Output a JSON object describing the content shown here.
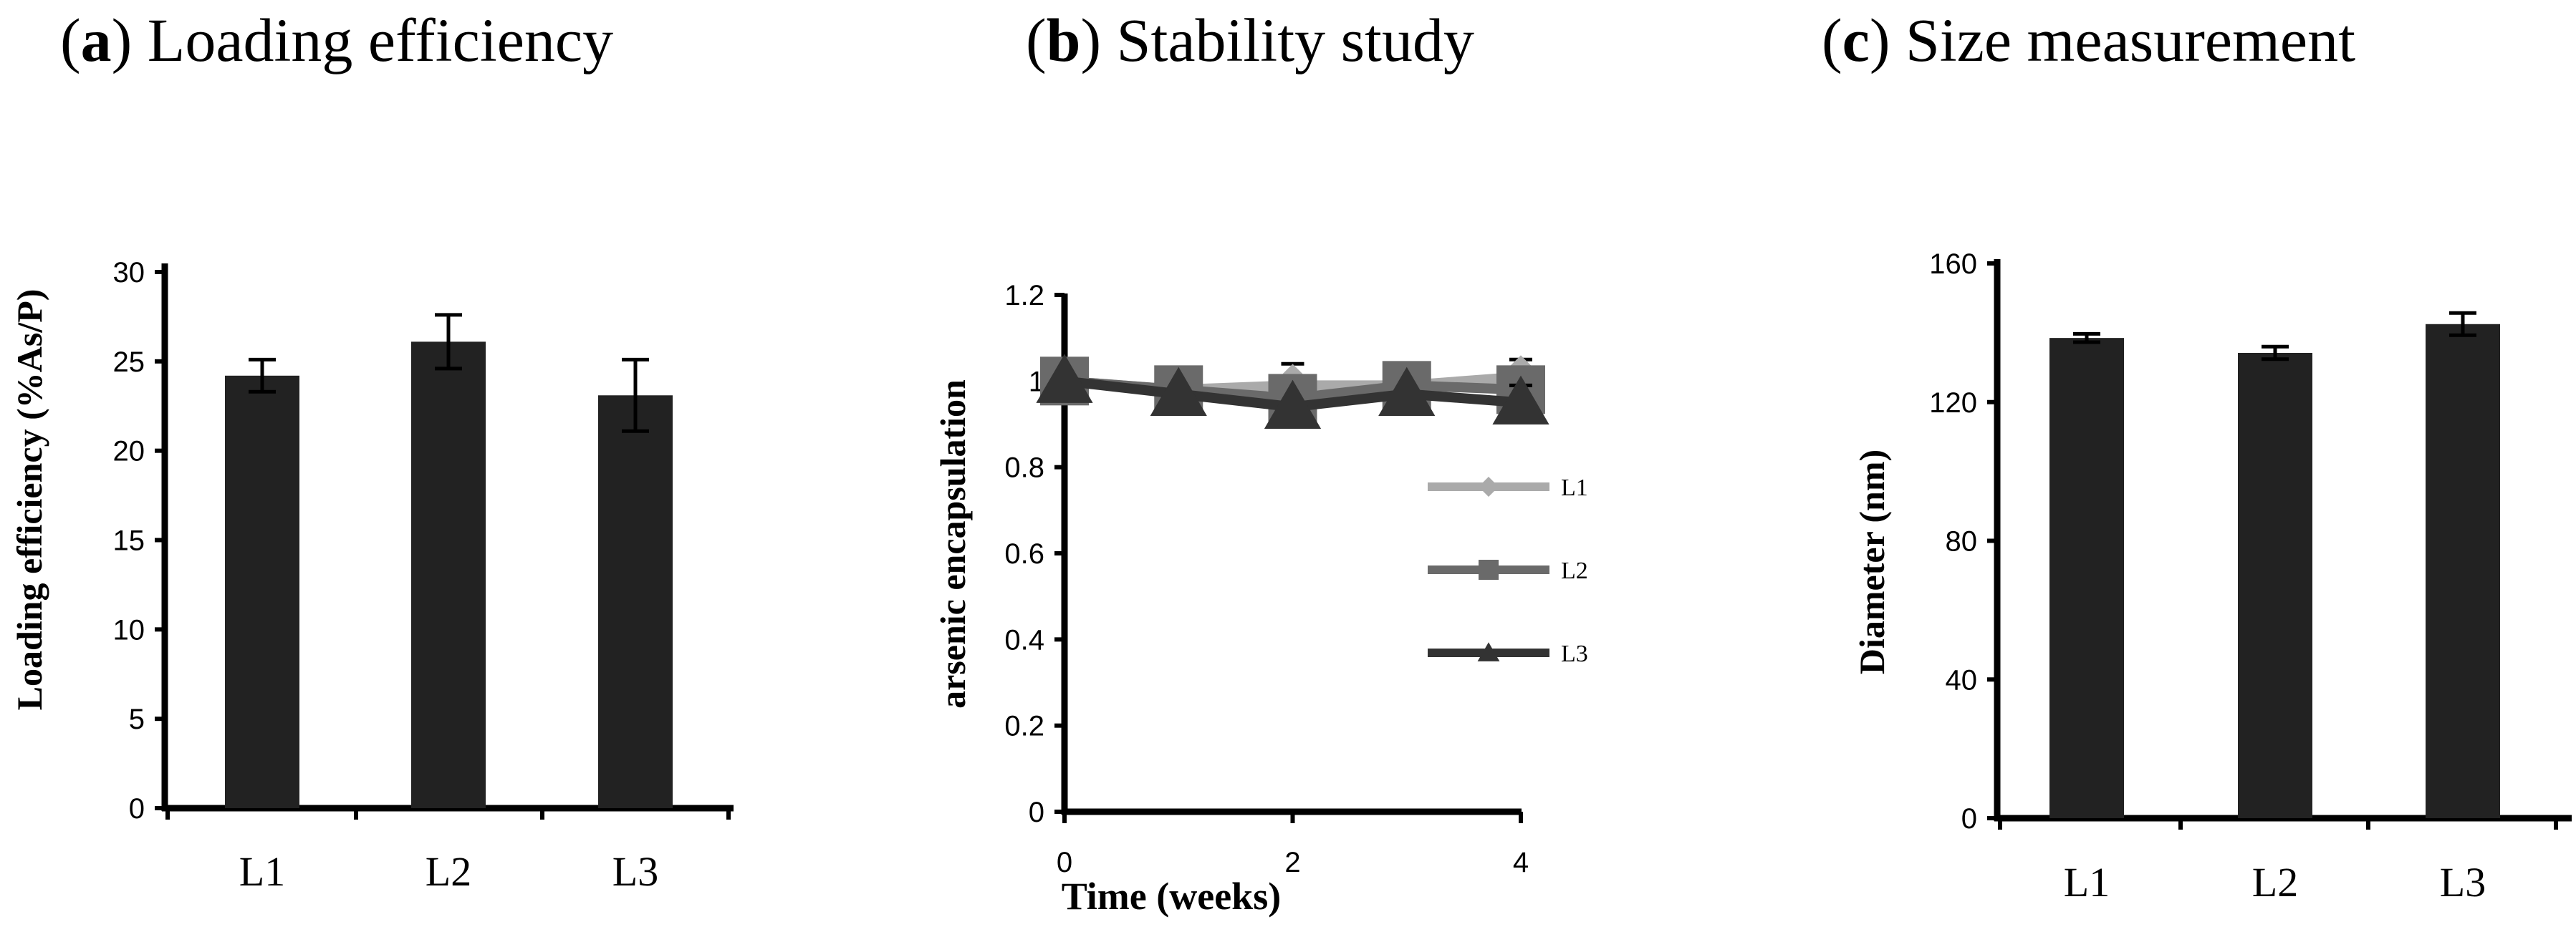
{
  "chart_data": [
    {
      "panel": "a",
      "type": "bar",
      "title_letter": "a",
      "title_text": "Loading efficiency",
      "ylabel": "Loading efficiency (%As/P)",
      "xlabel": "",
      "categories": [
        "L1",
        "L2",
        "L3"
      ],
      "values": [
        24.2,
        26.1,
        23.1
      ],
      "errors": [
        0.9,
        1.5,
        2.0
      ],
      "ylim": [
        0,
        30
      ],
      "yticks": [
        0,
        5,
        10,
        15,
        20,
        25,
        30
      ],
      "colors": {
        "bar": "#222222"
      }
    },
    {
      "panel": "b",
      "type": "line",
      "title_letter": "b",
      "title_text": "Stability study",
      "ylabel": "arsenic encapsulation",
      "xlabel": "Time (weeks)",
      "x": [
        0,
        1,
        2,
        3,
        4
      ],
      "xlim": [
        0,
        4
      ],
      "xticks": [
        0,
        2,
        4
      ],
      "ylim": [
        0,
        1.2
      ],
      "yticks": [
        "0",
        "0.2",
        "0.4",
        "0.6",
        "0.8",
        "1",
        "1.2"
      ],
      "ytick_values": [
        0,
        0.2,
        0.4,
        0.6,
        0.8,
        1.0,
        1.2
      ],
      "series": [
        {
          "name": "L1",
          "marker": "diamond",
          "color": "#aaaaaa",
          "values": [
            1.0,
            0.98,
            0.99,
            0.99,
            1.01
          ],
          "errors": [
            0,
            0,
            0.05,
            0,
            0.04
          ]
        },
        {
          "name": "L2",
          "marker": "square",
          "color": "#6a6a6a",
          "values": [
            1.0,
            0.98,
            0.96,
            0.99,
            0.98
          ],
          "errors": [
            0,
            0,
            0,
            0,
            0
          ]
        },
        {
          "name": "L3",
          "marker": "triangle",
          "color": "#333333",
          "values": [
            1.0,
            0.97,
            0.94,
            0.97,
            0.95
          ],
          "errors": [
            0,
            0,
            0,
            0,
            0.04
          ]
        }
      ],
      "legend_position": "right"
    },
    {
      "panel": "c",
      "type": "bar",
      "title_letter": "c",
      "title_text": "Size measurement",
      "ylabel": "Diameter (nm)",
      "xlabel": "",
      "categories": [
        "L1",
        "L2",
        "L3"
      ],
      "values": [
        138.5,
        134.2,
        142.5
      ],
      "errors": [
        1.2,
        1.8,
        3.2
      ],
      "ylim": [
        0,
        160
      ],
      "yticks": [
        0,
        40,
        80,
        120,
        160
      ],
      "colors": {
        "bar": "#222222"
      }
    }
  ]
}
